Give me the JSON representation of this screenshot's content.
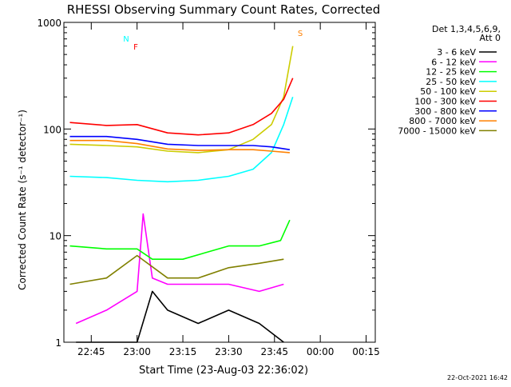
{
  "chart_data": {
    "type": "line",
    "title": "RHESSI Observing Summary Count Rates, Corrected",
    "xlabel": "Start Time (23-Aug-03 22:36:02)",
    "ylabel": "Corrected Count Rate (s⁻¹ detector⁻¹)",
    "yscale": "log",
    "ylim": [
      1,
      1000
    ],
    "xlim": [
      "22:36:02",
      "00:18:00"
    ],
    "x_ticks": [
      "22:45",
      "23:00",
      "23:15",
      "23:30",
      "23:45",
      "00:00",
      "00:15"
    ],
    "y_ticks": [
      "1",
      "10",
      "100",
      "1000"
    ],
    "detector_label": "Det 1,3,4,5,6,9,",
    "attenuator_label": "Att 0",
    "legend_position": "right",
    "timestamp": "22-Oct-2021 16:42",
    "flag_labels": {
      "N": "N",
      "F": "F",
      "S": "S"
    },
    "series": [
      {
        "name": "3 - 6 keV",
        "color": "#000000",
        "x": [
          "22:40",
          "23:00",
          "23:05",
          "23:10",
          "23:20",
          "23:30",
          "23:40",
          "23:48"
        ],
        "values": [
          1,
          1,
          3,
          2,
          1.5,
          2,
          1.5,
          1
        ]
      },
      {
        "name": "6 - 12 keV",
        "color": "#ff00ff",
        "x": [
          "22:40",
          "22:50",
          "23:00",
          "23:02",
          "23:05",
          "23:10",
          "23:20",
          "23:30",
          "23:40",
          "23:48"
        ],
        "values": [
          1.5,
          2,
          3,
          16,
          4,
          3.5,
          3.5,
          3.5,
          3,
          3.5
        ]
      },
      {
        "name": "12 - 25 keV",
        "color": "#00ff00",
        "x": [
          "22:38",
          "22:50",
          "23:00",
          "23:05",
          "23:15",
          "23:30",
          "23:40",
          "23:47",
          "23:50"
        ],
        "values": [
          8,
          7.5,
          7.5,
          6,
          6,
          8,
          8,
          9,
          14
        ]
      },
      {
        "name": "25 - 50 keV",
        "color": "#00ffff",
        "x": [
          "22:38",
          "22:50",
          "23:00",
          "23:10",
          "23:20",
          "23:30",
          "23:38",
          "23:44",
          "23:48",
          "23:51"
        ],
        "values": [
          36,
          35,
          33,
          32,
          33,
          36,
          42,
          60,
          110,
          200
        ]
      },
      {
        "name": "50 - 100 keV",
        "color": "#cccc00",
        "x": [
          "22:38",
          "22:50",
          "23:00",
          "23:10",
          "23:20",
          "23:30",
          "23:38",
          "23:44",
          "23:48",
          "23:51"
        ],
        "values": [
          72,
          70,
          68,
          62,
          60,
          64,
          80,
          110,
          200,
          600
        ]
      },
      {
        "name": "100 - 300 keV",
        "color": "#ff0000",
        "x": [
          "22:38",
          "22:50",
          "23:00",
          "23:10",
          "23:20",
          "23:30",
          "23:38",
          "23:44",
          "23:48",
          "23:51"
        ],
        "values": [
          115,
          108,
          110,
          92,
          88,
          92,
          110,
          140,
          190,
          300
        ]
      },
      {
        "name": "300 - 800 keV",
        "color": "#0000ff",
        "x": [
          "22:38",
          "22:50",
          "23:00",
          "23:10",
          "23:20",
          "23:30",
          "23:38",
          "23:44",
          "23:50"
        ],
        "values": [
          85,
          85,
          80,
          72,
          70,
          70,
          70,
          68,
          64
        ]
      },
      {
        "name": "800 - 7000 keV",
        "color": "#ff8000",
        "x": [
          "22:38",
          "22:50",
          "23:00",
          "23:10",
          "23:20",
          "23:30",
          "23:38",
          "23:44",
          "23:50"
        ],
        "values": [
          78,
          78,
          73,
          65,
          63,
          64,
          64,
          62,
          60
        ]
      },
      {
        "name": "7000 - 15000 keV",
        "color": "#808000",
        "x": [
          "22:38",
          "22:50",
          "23:00",
          "23:10",
          "23:20",
          "23:30",
          "23:40",
          "23:48"
        ],
        "values": [
          3.5,
          4,
          6.5,
          4,
          4,
          5,
          5.5,
          6
        ]
      }
    ]
  }
}
